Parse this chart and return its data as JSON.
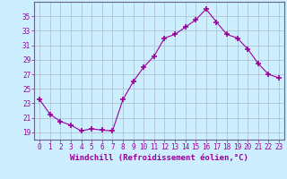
{
  "x": [
    0,
    1,
    2,
    3,
    4,
    5,
    6,
    7,
    8,
    9,
    10,
    11,
    12,
    13,
    14,
    15,
    16,
    17,
    18,
    19,
    20,
    21,
    22,
    23
  ],
  "y": [
    23.5,
    21.5,
    20.5,
    20.0,
    19.2,
    19.5,
    19.3,
    19.2,
    23.5,
    26.0,
    28.0,
    29.5,
    32.0,
    32.5,
    33.5,
    34.5,
    36.0,
    34.2,
    32.5,
    32.0,
    30.5,
    28.5,
    27.0,
    26.5
  ],
  "line_color": "#990099",
  "marker": "+",
  "markersize": 4.0,
  "markeredgewidth": 1.2,
  "linewidth": 0.8,
  "background_color": "#cceeff",
  "grid_color": "#aabbcc",
  "xlabel": "Windchill (Refroidissement éolien,°C)",
  "xlabel_color": "#990099",
  "ylabel_ticks": [
    19,
    21,
    23,
    25,
    27,
    29,
    31,
    33,
    35
  ],
  "ylim": [
    18.0,
    37.0
  ],
  "xlim": [
    -0.5,
    23.5
  ],
  "xtick_labels": [
    "0",
    "1",
    "2",
    "3",
    "4",
    "5",
    "6",
    "7",
    "8",
    "9",
    "10",
    "11",
    "12",
    "13",
    "14",
    "15",
    "16",
    "17",
    "18",
    "19",
    "20",
    "21",
    "22",
    "23"
  ],
  "tick_color": "#990099",
  "tick_fontsize": 5.5,
  "xlabel_fontsize": 6.5
}
